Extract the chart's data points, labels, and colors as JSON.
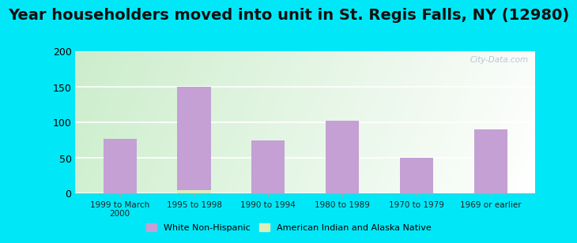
{
  "title": "Year householders moved into unit in St. Regis Falls, NY (12980)",
  "categories": [
    "1999 to March\n2000",
    "1995 to 1998",
    "1990 to 1994",
    "1980 to 1989",
    "1970 to 1979",
    "1969 or earlier"
  ],
  "white_non_hispanic": [
    77,
    150,
    74,
    102,
    50,
    90
  ],
  "american_indian": [
    0,
    4,
    0,
    0,
    0,
    0
  ],
  "bar_color_white": "#c4a0d4",
  "bar_color_indian": "#ddeebb",
  "background_outer": "#00e8f8",
  "background_inner_topleft": "#c8e8c8",
  "background_inner_topright": "#e8f4f0",
  "background_inner_bottom": "#f0f8f0",
  "ylim": [
    0,
    200
  ],
  "yticks": [
    0,
    50,
    100,
    150,
    200
  ],
  "title_fontsize": 14,
  "watermark": "City-Data.com",
  "legend_white": "White Non-Hispanic",
  "legend_indian": "American Indian and Alaska Native"
}
